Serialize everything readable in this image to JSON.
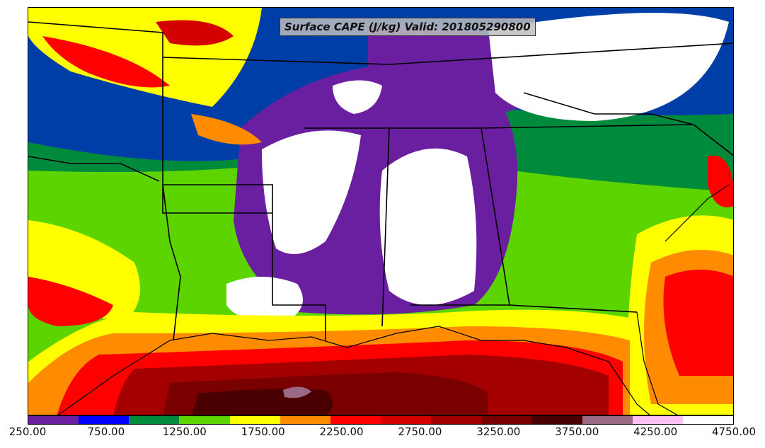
{
  "title": "Surface CAPE (J/kg) Valid: 201805290800",
  "colorbar": {
    "min": 250.0,
    "max": 4750.0,
    "colors": [
      "#6a1fa0",
      "#0000ff",
      "#008a3c",
      "#5bd400",
      "#ffff00",
      "#ff8c00",
      "#ff0000",
      "#d40000",
      "#a50000",
      "#7a0000",
      "#4a0000",
      "#9a6a85",
      "#ffc0f5",
      "#ffffff"
    ],
    "tick_labels": [
      "250.00",
      "750.00",
      "1250.00",
      "1750.00",
      "2250.00",
      "2750.00",
      "3250.00",
      "3750.00",
      "4250.00",
      "4750.00"
    ],
    "tick_values": [
      250,
      750,
      1250,
      1750,
      2250,
      2750,
      3250,
      3750,
      4250,
      4750
    ]
  }
}
